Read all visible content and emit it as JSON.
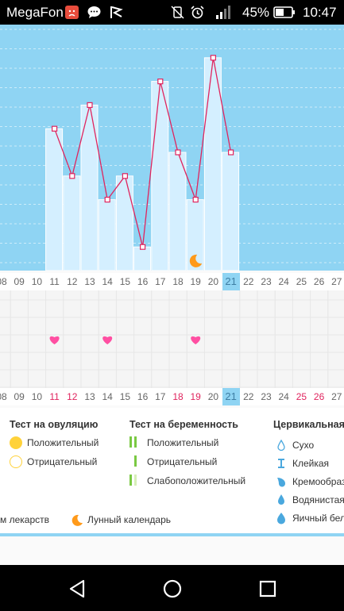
{
  "status_bar": {
    "carrier": "MegaFon",
    "battery_percent": "45%",
    "time": "10:47",
    "icons": [
      "angry-face-icon",
      "chat-bubble-icon",
      "flag-icon",
      "vibrate-off-icon",
      "alarm-icon",
      "signal-icon",
      "battery-icon"
    ]
  },
  "colors": {
    "chart_bg": "#8fd4f3",
    "bar_fill": "#d4efff",
    "line": "#e0245e",
    "heart": "#ff4fa2",
    "moon": "#ff9a1a",
    "today": "#8fd4f3"
  },
  "dates": [
    "08",
    "09",
    "10",
    "11",
    "12",
    "13",
    "14",
    "15",
    "16",
    "17",
    "18",
    "19",
    "20",
    "21",
    "22",
    "23",
    "24",
    "25",
    "26",
    "27"
  ],
  "today": "21",
  "bottom_red_dates": [
    "11",
    "12",
    "18",
    "19",
    "25",
    "26"
  ],
  "chart_data": {
    "type": "bar",
    "categories": [
      "11",
      "12",
      "13",
      "14",
      "15",
      "16",
      "17",
      "18",
      "19",
      "20",
      "21"
    ],
    "values": [
      6.0,
      4.0,
      7.0,
      3.0,
      4.0,
      1.0,
      8.0,
      5.0,
      3.0,
      9.0,
      5.0
    ],
    "grid": true,
    "ylim": [
      0,
      10
    ]
  },
  "moon_date": "19",
  "heart_dates": [
    "11",
    "14",
    "19"
  ],
  "legend": {
    "ovulation": {
      "title": "Тест на овуляцию",
      "positive": "Положительный",
      "negative": "Отрицательный"
    },
    "pregnancy": {
      "title": "Тест на беременность",
      "positive": "Положительный",
      "negative": "Отрицательный",
      "weak_positive": "Слабоположительный"
    },
    "cervical": {
      "title": "Цервикальная",
      "dry": "Сухо",
      "sticky": "Клейкая",
      "creamy": "Кремообраз",
      "watery": "Водянистая",
      "egg_white": "Яичный бел"
    },
    "medicines": "м лекарств",
    "lunar_calendar": "Лунный календарь"
  }
}
